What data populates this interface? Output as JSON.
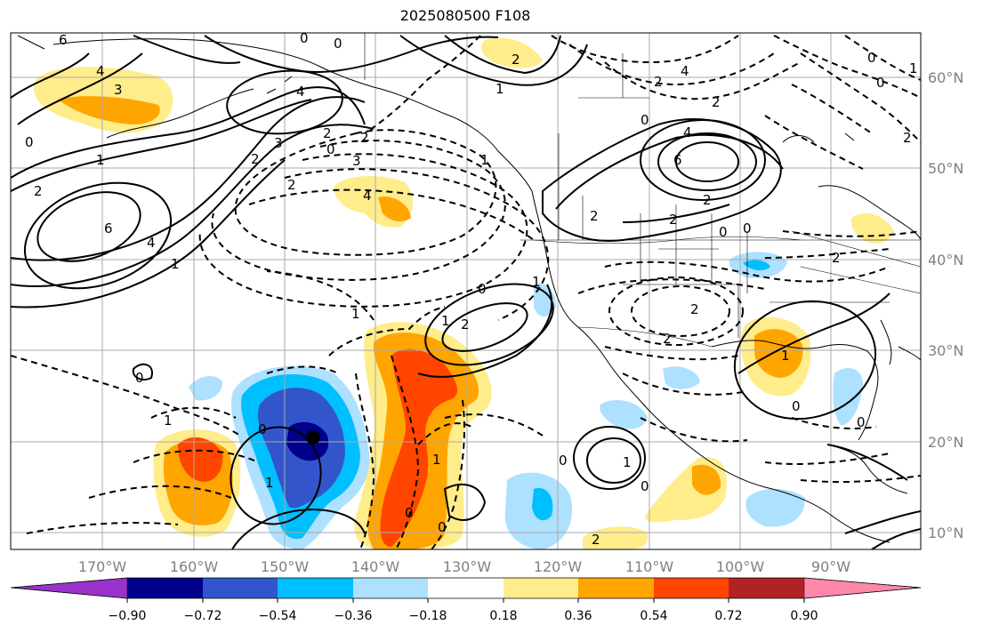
{
  "title": "2025080500 F108",
  "map": {
    "lon_ticks": [
      "170°W",
      "160°W",
      "150°W",
      "140°W",
      "130°W",
      "120°W",
      "110°W",
      "100°W",
      "90°W"
    ],
    "lat_ticks": [
      "60°N",
      "50°N",
      "40°N",
      "30°N",
      "20°N",
      "10°N"
    ]
  },
  "colorbar": {
    "ticks": [
      "−0.90",
      "−0.72",
      "−0.54",
      "−0.36",
      "−0.18",
      "0.18",
      "0.36",
      "0.54",
      "0.72",
      "0.90"
    ],
    "colors": [
      "#9933cc",
      "#00008b",
      "#3355cc",
      "#00bfff",
      "#aee0ff",
      "#ffffff",
      "#ffec8b",
      "#ffa500",
      "#ff4500",
      "#b22222",
      "#ff88aa"
    ]
  },
  "contour_labels": [
    "6",
    "0",
    "4",
    "3",
    "2",
    "4",
    "0",
    "0",
    "2",
    "0",
    "1",
    "1",
    "2",
    "2",
    "3",
    "2",
    "4",
    "6",
    "4",
    "2",
    "1",
    "2",
    "3",
    "2",
    "0",
    "0",
    "2",
    "2",
    "2",
    "4",
    "6",
    "4",
    "0",
    "1",
    "1",
    "1",
    "0",
    "1",
    "2",
    "2",
    "2",
    "1",
    "2",
    "0",
    "0",
    "1",
    "0",
    "1",
    "0",
    "0",
    "1",
    "0",
    "0",
    "0",
    "1",
    "2",
    "0",
    "0",
    "2",
    "1"
  ],
  "marker": "storm-center-dot"
}
